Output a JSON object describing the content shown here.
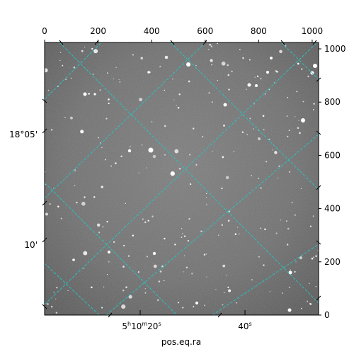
{
  "figure": {
    "type": "astronomical-image-with-wcs-grid",
    "colormap": "grayscale",
    "grid_color": "#26c6c6",
    "frame_color": "#000000"
  },
  "pixel_axes": {
    "x_ticks": [
      "0",
      "200",
      "400",
      "600",
      "800",
      "1000"
    ],
    "x_tick_values": [
      0,
      200,
      400,
      600,
      800,
      1000
    ],
    "x_range": [
      0,
      1024
    ],
    "y_ticks": [
      "0",
      "200",
      "400",
      "600",
      "800",
      "1000"
    ],
    "y_tick_values": [
      0,
      200,
      400,
      600,
      800,
      1000
    ],
    "y_range": [
      0,
      1024
    ]
  },
  "world_axes": {
    "xlabel": "pos.eq.ra",
    "ra_ticks": [
      {
        "base": "5",
        "h": "h",
        "m_val": "10",
        "m": "m",
        "s_val": "20",
        "s": "s"
      },
      {
        "base": "",
        "h": "",
        "m_val": "",
        "m": "",
        "s_val": "40",
        "s": "s"
      }
    ],
    "dec_ticks": [
      "18°05'",
      "10'"
    ]
  }
}
